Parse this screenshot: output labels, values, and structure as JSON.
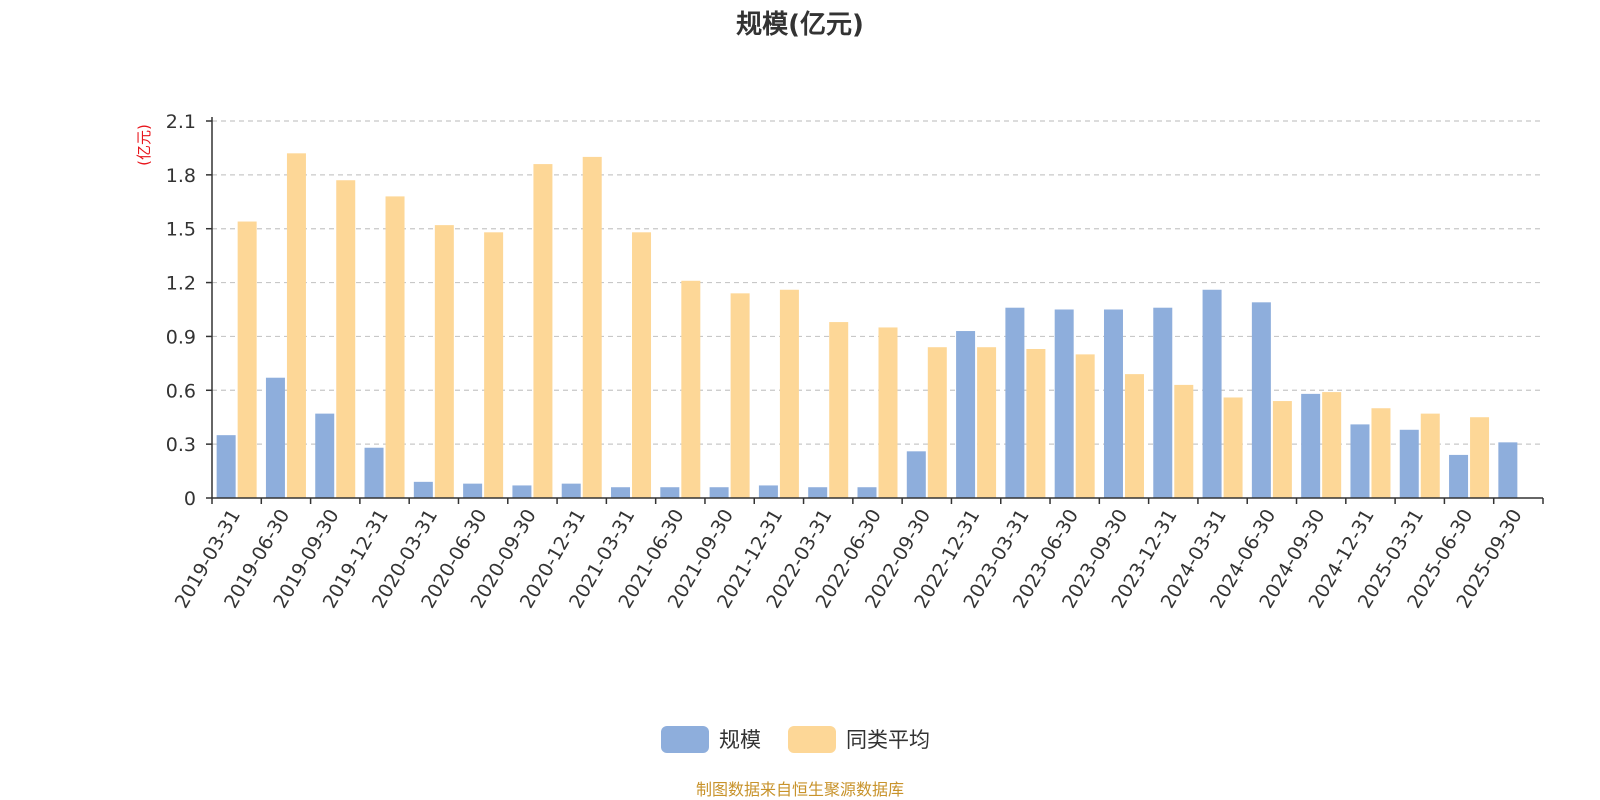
{
  "colors": {
    "series_a": "#8eaedc",
    "series_b": "#fdd797",
    "unit": "#e8141b",
    "source": "#c8932b",
    "grid": "#c8c8c8",
    "axis": "#333333"
  },
  "chart_data": {
    "type": "bar",
    "title": "规模(亿元)",
    "ylabel": "(亿元)",
    "ylim": [
      0,
      2.1
    ],
    "yticks": [
      "0",
      "0.3",
      "0.6",
      "0.9",
      "1.2",
      "1.5",
      "1.8",
      "2.1"
    ],
    "grid": true,
    "legend_position": "bottom-center",
    "categories": [
      "2019-03-31",
      "2019-06-30",
      "2019-09-30",
      "2019-12-31",
      "2020-03-31",
      "2020-06-30",
      "2020-09-30",
      "2020-12-31",
      "2021-03-31",
      "2021-06-30",
      "2021-09-30",
      "2021-12-31",
      "2022-03-31",
      "2022-06-30",
      "2022-09-30",
      "2022-12-31",
      "2023-03-31",
      "2023-06-30",
      "2023-09-30",
      "2023-12-31",
      "2024-03-31",
      "2024-06-30",
      "2024-09-30",
      "2024-12-31",
      "2025-03-31",
      "2025-06-30",
      "2025-09-30"
    ],
    "series": [
      {
        "name": "规模",
        "values": [
          0.35,
          0.67,
          0.47,
          0.28,
          0.09,
          0.08,
          0.07,
          0.08,
          0.06,
          0.06,
          0.06,
          0.07,
          0.06,
          0.06,
          0.26,
          0.93,
          1.06,
          1.05,
          1.05,
          1.06,
          1.16,
          1.09,
          0.58,
          0.41,
          0.38,
          0.24,
          0.31
        ]
      },
      {
        "name": "同类平均",
        "values": [
          1.54,
          1.92,
          1.77,
          1.68,
          1.52,
          1.48,
          1.86,
          1.9,
          1.48,
          1.21,
          1.14,
          1.16,
          0.98,
          0.95,
          0.84,
          0.84,
          0.83,
          0.8,
          0.69,
          0.63,
          0.56,
          0.54,
          0.59,
          0.5,
          0.47,
          0.45,
          null
        ]
      }
    ]
  },
  "footer": {
    "source": "制图数据来自恒生聚源数据库"
  }
}
